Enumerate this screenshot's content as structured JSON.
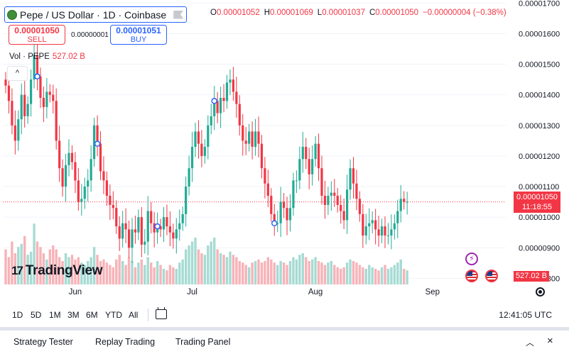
{
  "header": {
    "symbol_title": "Pepe / US Dollar · 1D · Coinbase",
    "ohlc": {
      "o_key": "O",
      "o": "0.00001052",
      "h_key": "H",
      "h": "0.00001069",
      "l_key": "L",
      "l": "0.00001037",
      "c_key": "C",
      "c": "0.00001050",
      "change": "−0.00000004 (−0.38%)"
    }
  },
  "trade": {
    "sell_price": "0.00001050",
    "sell_label": "SELL",
    "spread": "0.00000001",
    "buy_price": "0.00001051",
    "buy_label": "BUY"
  },
  "volume_legend": {
    "label": "Vol · PEPE",
    "value": "527.02 B"
  },
  "collapse_label": "^",
  "watermark": {
    "logo": "17",
    "text": "TradingView"
  },
  "last_price_tag": {
    "price": "0.00001050",
    "countdown": "11:18:55"
  },
  "volume_tag": "527.02 B",
  "colors": {
    "up": "#22ab94",
    "down": "#f23645",
    "up_vol": "#a6dbd3",
    "down_vol": "#f7b3b8"
  },
  "toolbar": {
    "ranges": [
      "1D",
      "5D",
      "1M",
      "3M",
      "6M",
      "YTD",
      "All"
    ],
    "clock": "12:41:05 UTC"
  },
  "bottom_panel": {
    "tabs": [
      "Strategy Tester",
      "Replay Trading",
      "Trading Panel"
    ],
    "toggle_icon": "chevron-up-icon",
    "close_icon": "close-icon"
  },
  "chart_data": {
    "type": "candlestick",
    "y_ticks": [
      "0.00001700",
      "0.00001600",
      "0.00001500",
      "0.00001400",
      "0.00001300",
      "0.00001200",
      "0.00001100",
      "0.00001000",
      "0.00000900",
      "0.00000800"
    ],
    "ylim": [
      7.8e-06,
      1.71e-05
    ],
    "x_ticks": [
      "Jun",
      "Jul",
      "Aug",
      "Sep"
    ],
    "last_price": 1.05e-05,
    "closes": [
      1.43e-05,
      1.38e-05,
      1.3e-05,
      1.25e-05,
      1.32e-05,
      1.4e-05,
      1.33e-05,
      1.37e-05,
      1.45e-05,
      1.53e-05,
      1.46e-05,
      1.39e-05,
      1.36e-05,
      1.41e-05,
      1.4e-05,
      1.38e-05,
      1.25e-05,
      1.16e-05,
      1.1e-05,
      1.17e-05,
      1.21e-05,
      1.18e-05,
      1.12e-05,
      1.05e-05,
      1.06e-05,
      1.1e-05,
      1.12e-05,
      1.19e-05,
      1.3e-05,
      1.24e-05,
      1.15e-05,
      1.12e-05,
      1.07e-05,
      1.04e-05,
      1.03e-05,
      9.7e-06,
      9.3e-06,
      9.8e-06,
      9.6e-06,
      9e-06,
      9.6e-06,
      9.5e-06,
      1e-05,
      9.1e-06,
      9.2e-06,
      1.02e-05,
      9.8e-06,
      9.5e-06,
      9.7e-06,
      9.6e-06,
      1e-05,
      9.7e-06,
      9.5e-06,
      9.3e-06,
      9.6e-06,
      9.8e-06,
      1.01e-05,
      1.1e-05,
      1.16e-05,
      1.23e-05,
      1.28e-05,
      1.24e-05,
      1.2e-05,
      1.23e-05,
      1.3e-05,
      1.33e-05,
      1.38e-05,
      1.34e-05,
      1.39e-05,
      1.38e-05,
      1.44e-05,
      1.45e-05,
      1.41e-05,
      1.37e-05,
      1.3e-05,
      1.25e-05,
      1.24e-05,
      1.28e-05,
      1.23e-05,
      1.28e-05,
      1.24e-05,
      1.16e-05,
      1.11e-05,
      1.07e-05,
      1.01e-05,
      9.8e-06,
      9.8e-06,
      1.05e-05,
      1.03e-05,
      9.9e-06,
      1.03e-05,
      1.12e-05,
      1.12e-05,
      1.19e-05,
      1.23e-05,
      1.19e-05,
      1.14e-05,
      1.19e-05,
      1.24e-05,
      1.16e-05,
      1.07e-05,
      1.04e-05,
      1.07e-05,
      1.08e-05,
      1.07e-05,
      1.04e-05,
      1.02e-05,
      9.9e-06,
      1.09e-05,
      1.16e-05,
      1.11e-05,
      1.06e-05,
      1.01e-05,
      9.4e-06,
      9.7e-06,
      9.8e-06,
      9.9e-06,
      9.6e-06,
      9.4e-06,
      9.7e-06,
      9.4e-06,
      9.4e-06,
      9.6e-06,
      9.8e-06,
      1.02e-05,
      1.06e-05,
      1.05e-05,
      1.05e-05
    ],
    "volume_relative": [
      0.45,
      0.35,
      0.55,
      0.4,
      0.48,
      0.52,
      0.62,
      0.38,
      0.42,
      0.78,
      0.55,
      0.48,
      0.4,
      0.32,
      0.45,
      0.5,
      0.45,
      0.35,
      0.3,
      0.4,
      0.35,
      0.38,
      0.32,
      0.35,
      0.28,
      0.25,
      0.3,
      0.35,
      0.48,
      0.38,
      0.3,
      0.32,
      0.28,
      0.25,
      0.22,
      0.32,
      0.38,
      0.3,
      0.25,
      0.35,
      0.3,
      0.22,
      0.28,
      0.32,
      0.25,
      0.35,
      0.28,
      0.22,
      0.3,
      0.25,
      0.2,
      0.18,
      0.25,
      0.22,
      0.2,
      0.28,
      0.32,
      0.45,
      0.5,
      0.55,
      0.6,
      0.45,
      0.4,
      0.38,
      0.5,
      0.55,
      0.6,
      0.45,
      0.4,
      0.38,
      0.35,
      0.42,
      0.38,
      0.35,
      0.3,
      0.28,
      0.25,
      0.22,
      0.28,
      0.3,
      0.32,
      0.28,
      0.3,
      0.35,
      0.32,
      0.28,
      0.25,
      0.3,
      0.28,
      0.25,
      0.3,
      0.35,
      0.32,
      0.38,
      0.4,
      0.35,
      0.3,
      0.32,
      0.35,
      0.3,
      0.28,
      0.25,
      0.28,
      0.3,
      0.25,
      0.22,
      0.2,
      0.22,
      0.28,
      0.32,
      0.3,
      0.28,
      0.25,
      0.22,
      0.2,
      0.25,
      0.22,
      0.2,
      0.18,
      0.22,
      0.25,
      0.2,
      0.22,
      0.25,
      0.28,
      0.32,
      0.2,
      0.18
    ],
    "event_markers": [
      10,
      29,
      48,
      66,
      85
    ]
  }
}
